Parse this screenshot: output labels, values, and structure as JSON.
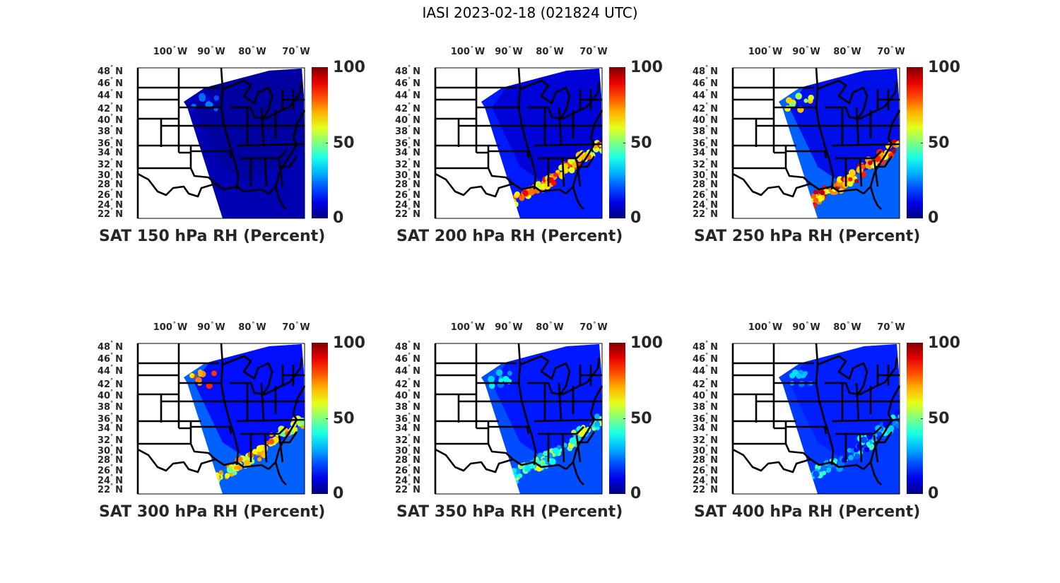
{
  "figure": {
    "title": "IASI 2023-02-18 (021824 UTC)"
  },
  "colors": {
    "text": "#262626",
    "border": "#000000",
    "colormap": "jet"
  },
  "chart_data": [
    {
      "type": "heatmap",
      "title": "SAT 150 hPa RH (Percent)",
      "level_hpa": 150,
      "variable": "RH",
      "units": "Percent",
      "xticks": [
        "100",
        "90",
        "80",
        "70"
      ],
      "xtick_suffix": "W",
      "yticks": [
        "48",
        "46",
        "44",
        "42",
        "40",
        "38",
        "36",
        "34",
        "32",
        "30",
        "28",
        "26",
        "24",
        "22"
      ],
      "ytick_suffix": "N",
      "colorbar": {
        "min": 0,
        "max": 100,
        "ticks": [
          "0",
          "50",
          "100"
        ]
      },
      "background_rh": 5,
      "moist_band_rh": 0,
      "northeast_rh": 3,
      "patch_rh": 30
    },
    {
      "type": "heatmap",
      "title": "SAT 200 hPa RH (Percent)",
      "level_hpa": 200,
      "variable": "RH",
      "units": "Percent",
      "xticks": [
        "100",
        "90",
        "80",
        "70"
      ],
      "xtick_suffix": "W",
      "yticks": [
        "48",
        "46",
        "44",
        "42",
        "40",
        "38",
        "36",
        "34",
        "32",
        "30",
        "28",
        "26",
        "24",
        "22"
      ],
      "ytick_suffix": "N",
      "colorbar": {
        "min": 0,
        "max": 100,
        "ticks": [
          "0",
          "50",
          "100"
        ]
      },
      "background_rh": 15,
      "moist_band_rh": 90,
      "northeast_rh": 8,
      "patch_rh": 0
    },
    {
      "type": "heatmap",
      "title": "SAT 250 hPa RH (Percent)",
      "level_hpa": 250,
      "variable": "RH",
      "units": "Percent",
      "xticks": [
        "100",
        "90",
        "80",
        "70"
      ],
      "xtick_suffix": "W",
      "yticks": [
        "48",
        "46",
        "44",
        "42",
        "40",
        "38",
        "36",
        "34",
        "32",
        "30",
        "28",
        "26",
        "24",
        "22"
      ],
      "ytick_suffix": "N",
      "colorbar": {
        "min": 0,
        "max": 100,
        "ticks": [
          "0",
          "50",
          "100"
        ]
      },
      "background_rh": 22,
      "moist_band_rh": 95,
      "northeast_rh": 10,
      "patch_rh": 70
    },
    {
      "type": "heatmap",
      "title": "SAT 300 hPa RH (Percent)",
      "level_hpa": 300,
      "variable": "RH",
      "units": "Percent",
      "xticks": [
        "100",
        "90",
        "80",
        "70"
      ],
      "xtick_suffix": "W",
      "yticks": [
        "48",
        "46",
        "44",
        "42",
        "40",
        "38",
        "36",
        "34",
        "32",
        "30",
        "28",
        "26",
        "24",
        "22"
      ],
      "ytick_suffix": "N",
      "colorbar": {
        "min": 0,
        "max": 100,
        "ticks": [
          "0",
          "50",
          "100"
        ]
      },
      "background_rh": 22,
      "moist_band_rh": 80,
      "northeast_rh": 12,
      "patch_rh": 85
    },
    {
      "type": "heatmap",
      "title": "SAT 350 hPa RH (Percent)",
      "level_hpa": 350,
      "variable": "RH",
      "units": "Percent",
      "xticks": [
        "100",
        "90",
        "80",
        "70"
      ],
      "xtick_suffix": "W",
      "yticks": [
        "48",
        "46",
        "44",
        "42",
        "40",
        "38",
        "36",
        "34",
        "32",
        "30",
        "28",
        "26",
        "24",
        "22"
      ],
      "ytick_suffix": "N",
      "colorbar": {
        "min": 0,
        "max": 100,
        "ticks": [
          "0",
          "50",
          "100"
        ]
      },
      "background_rh": 20,
      "moist_band_rh": 62,
      "northeast_rh": 14,
      "patch_rh": 40
    },
    {
      "type": "heatmap",
      "title": "SAT 400 hPa RH (Percent)",
      "level_hpa": 400,
      "variable": "RH",
      "units": "Percent",
      "xticks": [
        "100",
        "90",
        "80",
        "70"
      ],
      "xtick_suffix": "W",
      "yticks": [
        "48",
        "46",
        "44",
        "42",
        "40",
        "38",
        "36",
        "34",
        "32",
        "30",
        "28",
        "26",
        "24",
        "22"
      ],
      "ytick_suffix": "N",
      "colorbar": {
        "min": 0,
        "max": 100,
        "ticks": [
          "0",
          "50",
          "100"
        ]
      },
      "background_rh": 18,
      "moist_band_rh": 45,
      "northeast_rh": 15,
      "patch_rh": 35
    }
  ]
}
